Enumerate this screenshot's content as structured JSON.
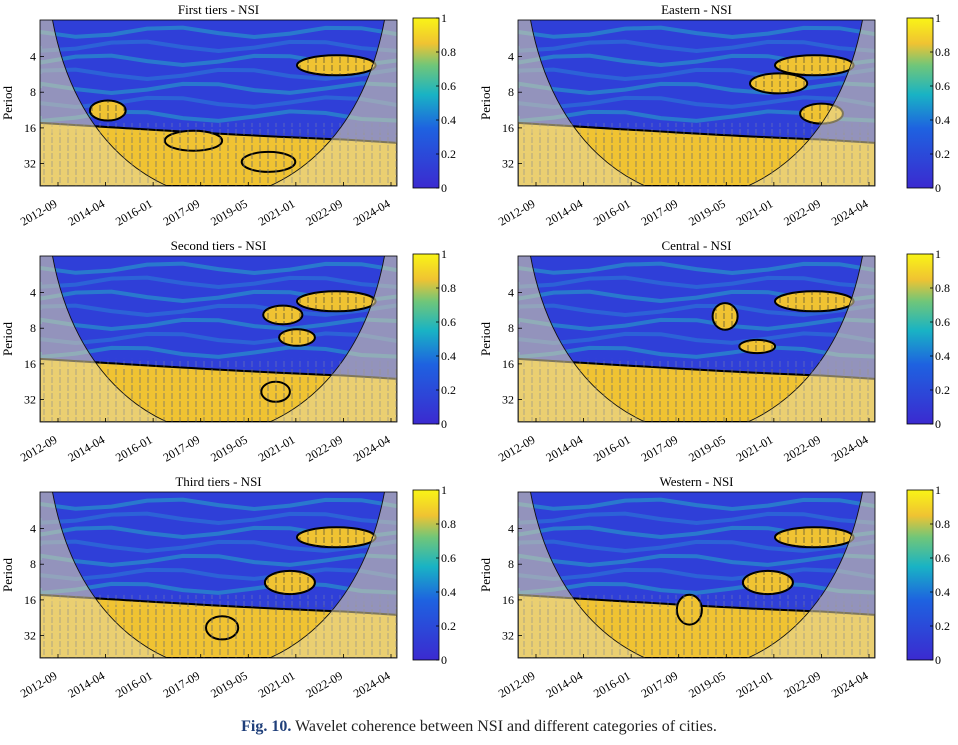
{
  "figure_caption": {
    "label": "Fig. 10.",
    "text": "Wavelet coherence between NSI and different categories of cities."
  },
  "colors": {
    "low": "#3b2ad0",
    "mid": "#19b3c4",
    "high": "#f0c332",
    "top": "#f9f416",
    "outline": "#000000",
    "coi": "#e6d9a6"
  },
  "chart_data": [
    {
      "type": "heatmap",
      "title": "First tiers - NSI",
      "ylabel": "Period",
      "yticks": [
        "4",
        "8",
        "16",
        "32"
      ],
      "xticks": [
        "2012-09",
        "2014-04",
        "2016-01",
        "2017-09",
        "2019-05",
        "2021-01",
        "2022-09",
        "2024-04"
      ],
      "colorbar_ticks": [
        "0",
        "0.2",
        "0.4",
        "0.6",
        "0.8",
        "1"
      ],
      "clim": [
        0,
        1
      ],
      "blobs": [
        {
          "t": 0.83,
          "p": 1.5,
          "rx": 1.1,
          "ry": 0.3
        },
        {
          "t": 0.19,
          "p": 3.0,
          "rx": 0.5,
          "ry": 0.3
        },
        {
          "t": 0.64,
          "p": 4.7,
          "rx": 0.75,
          "ry": 0.3
        },
        {
          "t": 0.43,
          "p": 4.0,
          "rx": 0.8,
          "ry": 0.3
        }
      ]
    },
    {
      "type": "heatmap",
      "title": "Eastern - NSI",
      "ylabel": "Period",
      "yticks": [
        "4",
        "8",
        "16",
        "32"
      ],
      "xticks": [
        "2012-09",
        "2014-04",
        "2016-01",
        "2017-09",
        "2019-05",
        "2021-01",
        "2022-09",
        "2024-04"
      ],
      "colorbar_ticks": [
        "0",
        "0.2",
        "0.4",
        "0.6",
        "0.8",
        "1"
      ],
      "clim": [
        0,
        1
      ],
      "blobs": [
        {
          "t": 0.83,
          "p": 1.5,
          "rx": 1.1,
          "ry": 0.3
        },
        {
          "t": 0.73,
          "p": 2.1,
          "rx": 0.8,
          "ry": 0.3
        },
        {
          "t": 0.85,
          "p": 3.1,
          "rx": 0.6,
          "ry": 0.3
        }
      ]
    },
    {
      "type": "heatmap",
      "title": "Second tiers - NSI",
      "ylabel": "Period",
      "yticks": [
        "4",
        "8",
        "16",
        "32"
      ],
      "xticks": [
        "2012-09",
        "2014-04",
        "2016-01",
        "2017-09",
        "2019-05",
        "2021-01",
        "2022-09",
        "2024-04"
      ],
      "colorbar_ticks": [
        "0",
        "0.2",
        "0.4",
        "0.6",
        "0.8",
        "1"
      ],
      "clim": [
        0,
        1
      ],
      "blobs": [
        {
          "t": 0.83,
          "p": 1.5,
          "rx": 1.1,
          "ry": 0.3
        },
        {
          "t": 0.72,
          "p": 2.7,
          "rx": 0.5,
          "ry": 0.25
        },
        {
          "t": 0.68,
          "p": 1.95,
          "rx": 0.55,
          "ry": 0.28
        },
        {
          "t": 0.66,
          "p": 4.5,
          "rx": 0.4,
          "ry": 0.3
        }
      ]
    },
    {
      "type": "heatmap",
      "title": "Central - NSI",
      "ylabel": "Period",
      "yticks": [
        "4",
        "8",
        "16",
        "32"
      ],
      "xticks": [
        "2012-09",
        "2014-04",
        "2016-01",
        "2017-09",
        "2019-05",
        "2021-01",
        "2022-09",
        "2024-04"
      ],
      "colorbar_ticks": [
        "0",
        "0.2",
        "0.4",
        "0.6",
        "0.8",
        "1"
      ],
      "clim": [
        0,
        1
      ],
      "blobs": [
        {
          "t": 0.83,
          "p": 1.5,
          "rx": 1.1,
          "ry": 0.3
        },
        {
          "t": 0.67,
          "p": 3.0,
          "rx": 0.5,
          "ry": 0.2
        },
        {
          "t": 0.58,
          "p": 2.0,
          "rx": 0.35,
          "ry": 0.4
        }
      ]
    },
    {
      "type": "heatmap",
      "title": "Third tiers - NSI",
      "ylabel": "Period",
      "yticks": [
        "4",
        "8",
        "16",
        "32"
      ],
      "xticks": [
        "2012-09",
        "2014-04",
        "2016-01",
        "2017-09",
        "2019-05",
        "2021-01",
        "2022-09",
        "2024-04"
      ],
      "colorbar_ticks": [
        "0",
        "0.2",
        "0.4",
        "0.6",
        "0.8",
        "1"
      ],
      "clim": [
        0,
        1
      ],
      "blobs": [
        {
          "t": 0.83,
          "p": 1.5,
          "rx": 1.1,
          "ry": 0.3
        },
        {
          "t": 0.7,
          "p": 3.0,
          "rx": 0.7,
          "ry": 0.35
        },
        {
          "t": 0.51,
          "p": 4.5,
          "rx": 0.45,
          "ry": 0.35
        }
      ]
    },
    {
      "type": "heatmap",
      "title": "Western - NSI",
      "ylabel": "Period",
      "yticks": [
        "4",
        "8",
        "16",
        "32"
      ],
      "xticks": [
        "2012-09",
        "2014-04",
        "2016-01",
        "2017-09",
        "2019-05",
        "2021-01",
        "2022-09",
        "2024-04"
      ],
      "colorbar_ticks": [
        "0",
        "0.2",
        "0.4",
        "0.6",
        "0.8",
        "1"
      ],
      "clim": [
        0,
        1
      ],
      "blobs": [
        {
          "t": 0.83,
          "p": 1.5,
          "rx": 1.1,
          "ry": 0.3
        },
        {
          "t": 0.7,
          "p": 3.0,
          "rx": 0.7,
          "ry": 0.35
        },
        {
          "t": 0.48,
          "p": 3.9,
          "rx": 0.35,
          "ry": 0.45
        }
      ]
    }
  ]
}
